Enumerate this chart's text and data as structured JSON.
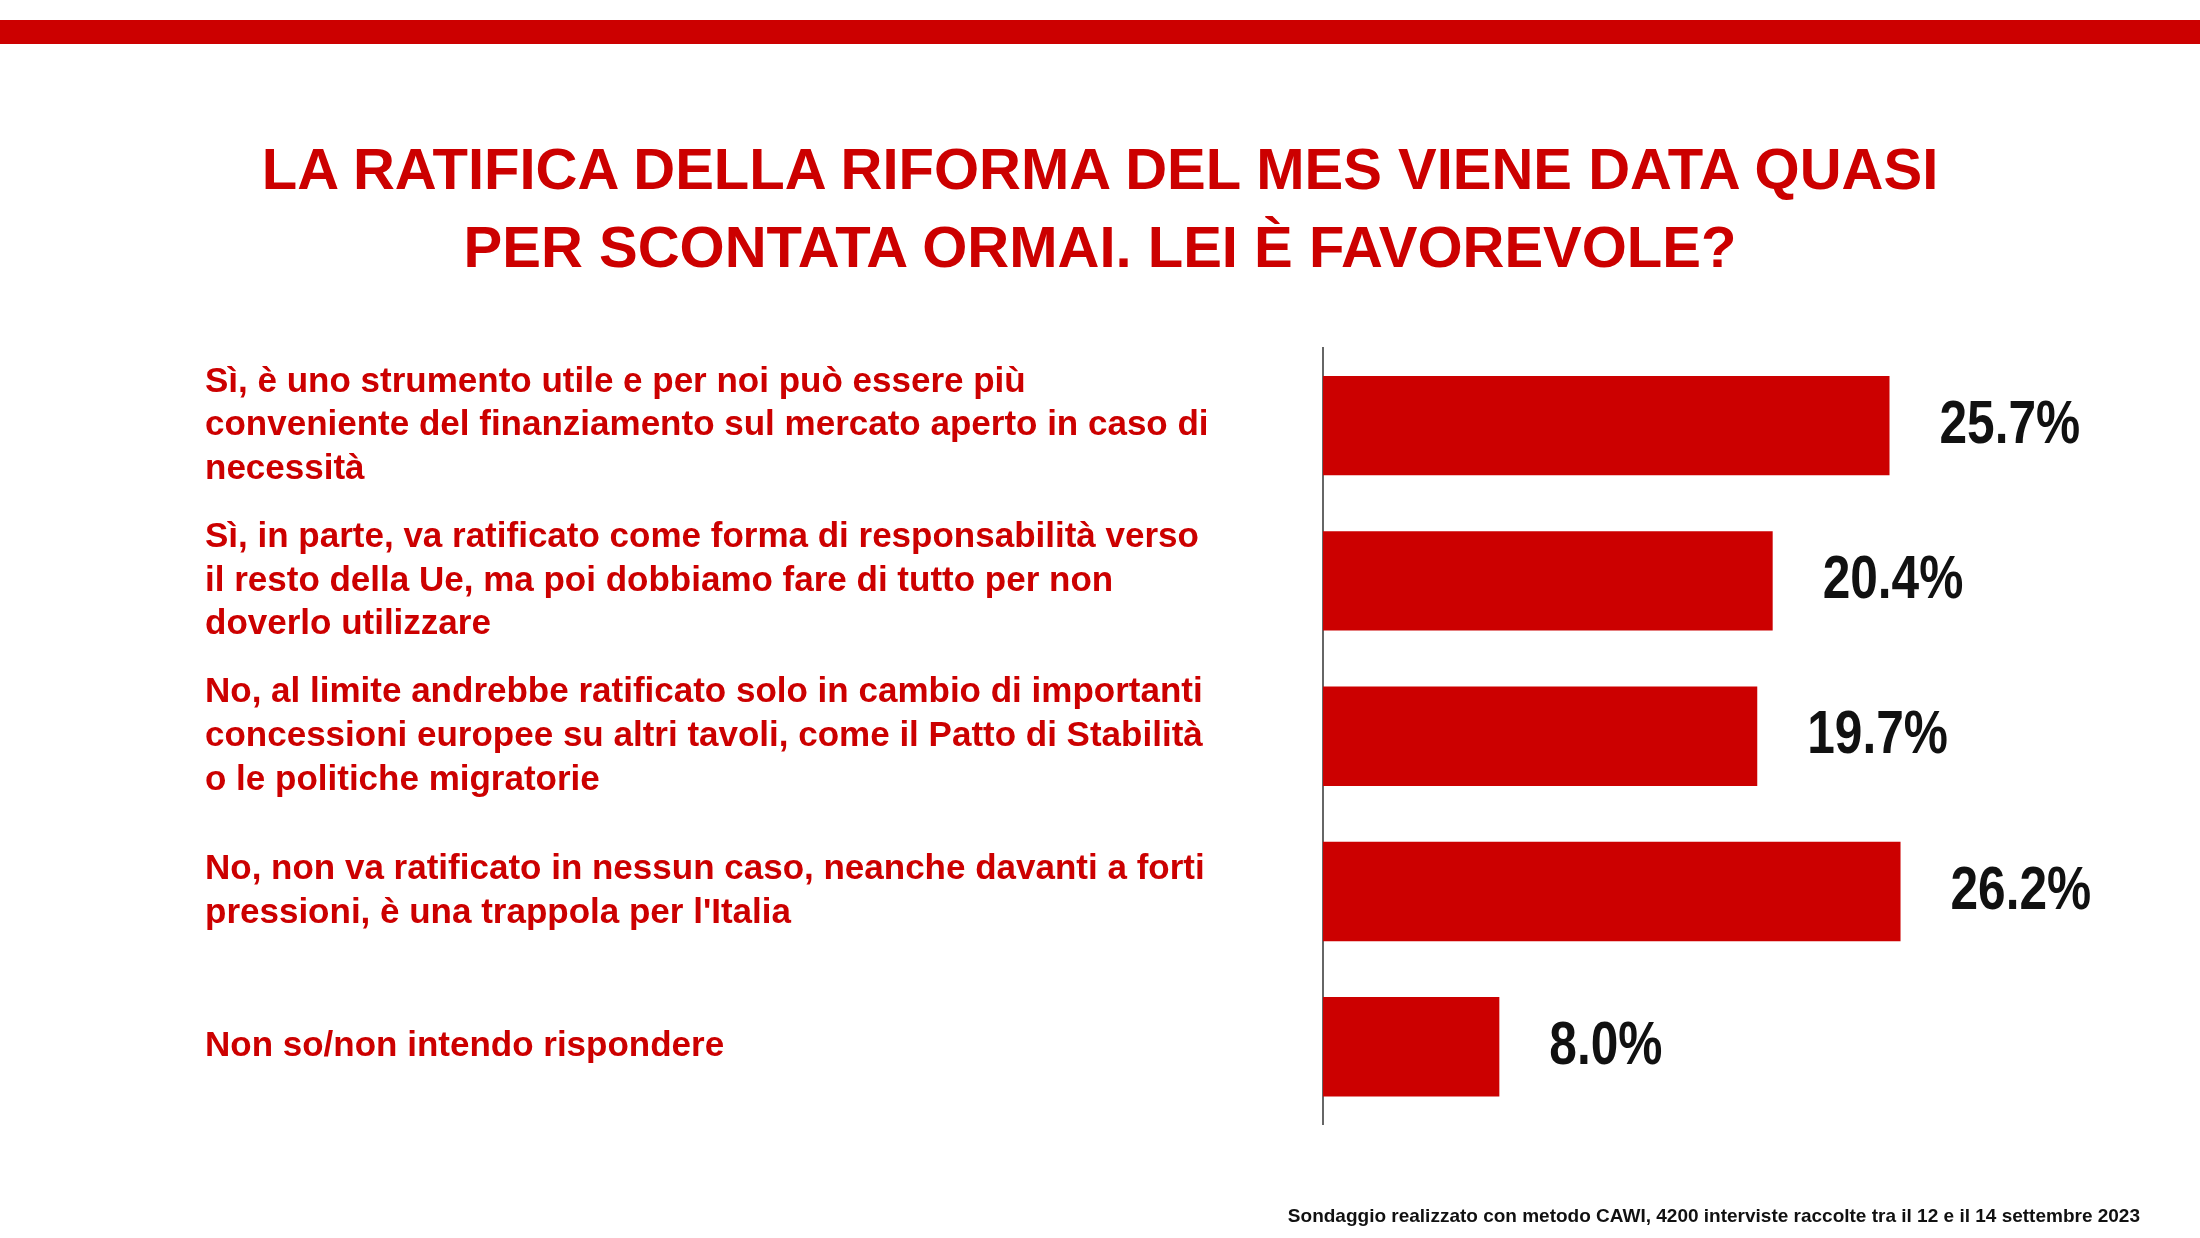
{
  "chart_data": {
    "type": "bar",
    "orientation": "horizontal",
    "title": "LA RATIFICA DELLA RIFORMA DEL MES VIENE DATA QUASI PER SCONTATA ORMAI. LEI È FAVOREVOLE?",
    "categories": [
      "Sì, è uno strumento utile e per noi può essere più conveniente del finanziamento sul mercato aperto in caso di necessità",
      "Sì, in parte, va ratificato come forma di responsabilità verso il resto della Ue, ma poi dobbiamo fare di tutto per non doverlo utilizzare",
      "No, al limite andrebbe ratificato solo in cambio di importanti concessioni europee su altri tavoli, come il Patto di Stabilità o le politiche migratorie",
      "No, non va ratificato in nessun caso, neanche davanti a forti pressioni, è una trappola per l'Italia",
      "Non so/non intendo rispondere"
    ],
    "values": [
      25.7,
      20.4,
      19.7,
      26.2,
      8.0
    ],
    "value_labels": [
      "25.7%",
      "20.4%",
      "19.7%",
      "26.2%",
      "8.0%"
    ],
    "color": "#cc0000",
    "grid": false,
    "legend": false,
    "annotations": [
      "Sondaggio realizzato con metodo CAWI, 4200 interviste raccolte tra il 12 e il 14 settembre 2023"
    ]
  }
}
